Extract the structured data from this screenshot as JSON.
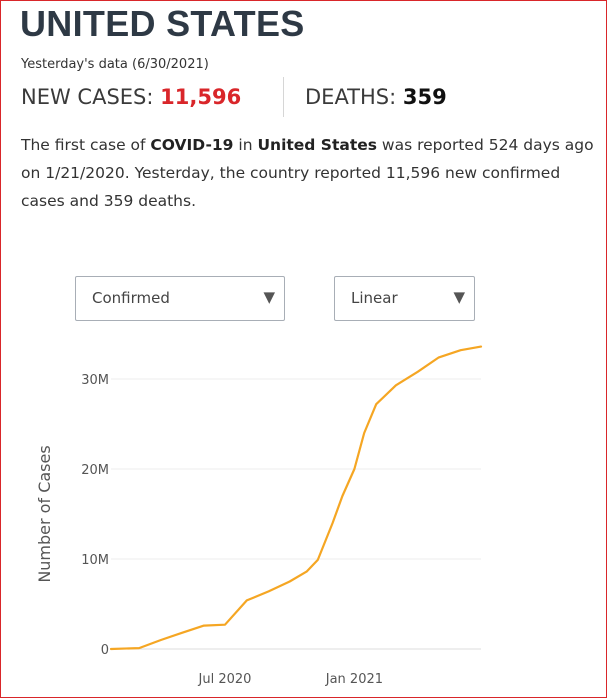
{
  "header": {
    "title": "UNITED STATES",
    "subtitle": "Yesterday's data (6/30/2021)"
  },
  "stats": {
    "cases_label": "NEW CASES:",
    "cases_value": "11,596",
    "deaths_label": "DEATHS:",
    "deaths_value": "359"
  },
  "summary": {
    "p1": "The first case of ",
    "b1": "COVID-19",
    "p2": " in ",
    "b2": "United States",
    "p3": " was reported 524 days ago on 1/21/2020. Yesterday, the country reported 11,596 new confirmed cases and 359 deaths."
  },
  "controls": {
    "metric_selected": "Confirmed",
    "scale_selected": "Linear",
    "arrow_glyph": "▼"
  },
  "colors": {
    "accent": "#d9262a",
    "line": "#f5a623",
    "title": "#2e3945"
  },
  "chart_data": {
    "type": "line",
    "title": "",
    "xlabel": "",
    "ylabel": "Number of Cases",
    "ylim": [
      0,
      34000000
    ],
    "y_ticks": [
      0,
      10000000,
      20000000,
      30000000
    ],
    "y_tick_labels": [
      "0",
      "10M",
      "20M",
      "30M"
    ],
    "x_ticks": [
      "2020-07-01",
      "2021-01-01"
    ],
    "x_tick_labels": [
      "Jul 2020",
      "Jan 2021"
    ],
    "grid": "horizontal",
    "legend": "none",
    "series": [
      {
        "x": [
          "2020-01-21",
          "2020-03-01",
          "2020-04-01",
          "2020-05-01",
          "2020-06-01",
          "2020-07-01",
          "2020-08-01",
          "2020-09-01",
          "2020-10-01",
          "2020-10-25",
          "2020-11-10",
          "2020-12-01",
          "2020-12-15",
          "2021-01-01",
          "2021-01-15",
          "2021-02-01",
          "2021-03-01",
          "2021-04-01",
          "2021-05-01",
          "2021-06-01",
          "2021-06-30"
        ],
        "y": [
          0,
          100000,
          1000000,
          1800000,
          2600000,
          2700000,
          5400000,
          6400000,
          7500000,
          8600000,
          9900000,
          14000000,
          17000000,
          20000000,
          24000000,
          27200000,
          29300000,
          30800000,
          32400000,
          33200000,
          33600000
        ]
      }
    ]
  }
}
